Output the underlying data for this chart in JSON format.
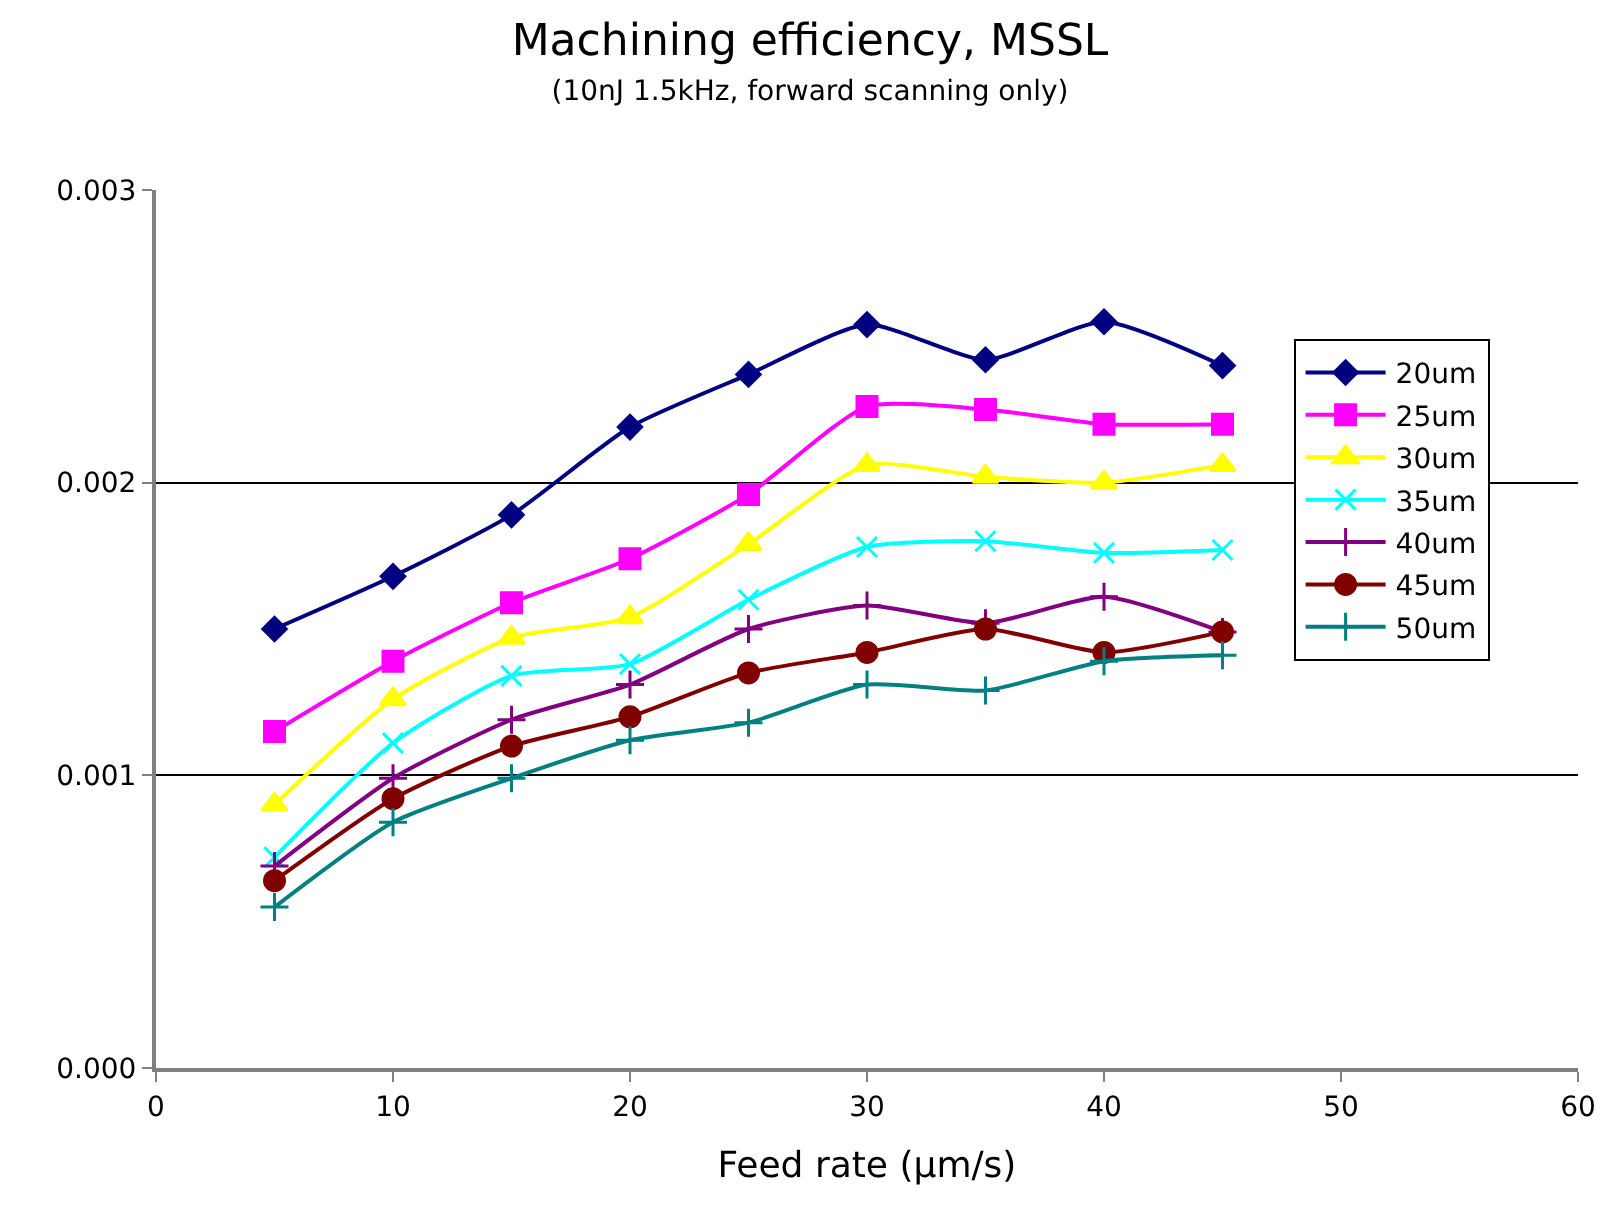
{
  "chart_data": {
    "type": "line",
    "title": "Machining efficiency, MSSL",
    "subtitle": "(10nJ 1.5kHz, forward scanning only)",
    "xlabel": "Feed rate (µm/s)",
    "x": [
      5,
      10,
      15,
      20,
      25,
      30,
      35,
      40,
      45
    ],
    "series": [
      {
        "name": "20um",
        "color": "#000080",
        "marker": "diamond",
        "values": [
          0.0015,
          0.00168,
          0.00189,
          0.00219,
          0.00237,
          0.00254,
          0.00242,
          0.00255,
          0.0024
        ]
      },
      {
        "name": "25um",
        "color": "#ff00ff",
        "marker": "square",
        "values": [
          0.00115,
          0.00139,
          0.00159,
          0.00174,
          0.00196,
          0.00226,
          0.00225,
          0.0022,
          0.0022
        ]
      },
      {
        "name": "30um",
        "color": "#ffff00",
        "marker": "triangle",
        "values": [
          0.0009,
          0.00126,
          0.00147,
          0.00154,
          0.00179,
          0.00206,
          0.00202,
          0.002,
          0.00206
        ]
      },
      {
        "name": "35um",
        "color": "#00ffff",
        "marker": "x",
        "values": [
          0.00072,
          0.00111,
          0.00134,
          0.00138,
          0.0016,
          0.00178,
          0.0018,
          0.00176,
          0.00177
        ]
      },
      {
        "name": "40um",
        "color": "#800080",
        "marker": "cross",
        "values": [
          0.00069,
          0.00099,
          0.00119,
          0.00131,
          0.0015,
          0.00158,
          0.00152,
          0.00161,
          0.00149
        ]
      },
      {
        "name": "45um",
        "color": "#800000",
        "marker": "circle",
        "values": [
          0.00064,
          0.00092,
          0.0011,
          0.0012,
          0.00135,
          0.00142,
          0.0015,
          0.00142,
          0.00149
        ]
      },
      {
        "name": "50um",
        "color": "#008080",
        "marker": "cross",
        "values": [
          0.00055,
          0.00084,
          0.00099,
          0.00112,
          0.00118,
          0.00131,
          0.00129,
          0.00139,
          0.00141
        ]
      }
    ],
    "xlim": [
      0,
      60
    ],
    "xticks": [
      0,
      10,
      20,
      30,
      40,
      50,
      60
    ],
    "ylim": [
      0,
      0.003
    ],
    "yticks": [
      {
        "value": 0,
        "label": "0.000"
      },
      {
        "value": 0.001,
        "label": "0.001"
      },
      {
        "value": 0.002,
        "label": "0.002"
      },
      {
        "value": 0.003,
        "label": "0.003"
      }
    ],
    "grid": "y",
    "legend": "right",
    "line_style": "solid"
  }
}
